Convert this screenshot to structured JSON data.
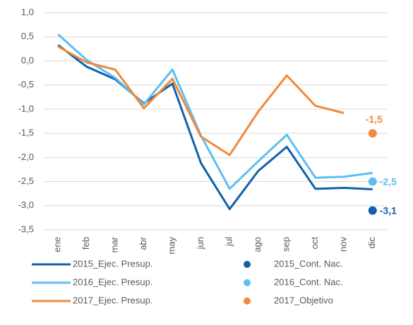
{
  "chart_data": {
    "type": "line",
    "categories": [
      "ene",
      "feb",
      "mar",
      "abr",
      "may",
      "jun",
      "jul",
      "ago",
      "sep",
      "oct",
      "nov",
      "dic"
    ],
    "ylim": [
      -3.5,
      1.0
    ],
    "yticks": [
      {
        "value": 1.0,
        "label": "1,0"
      },
      {
        "value": 0.5,
        "label": "0,5"
      },
      {
        "value": 0.0,
        "label": "0,0"
      },
      {
        "value": -0.5,
        "label": "-0,5"
      },
      {
        "value": -1.0,
        "label": "-1,0"
      },
      {
        "value": -1.5,
        "label": "-1,5"
      },
      {
        "value": -2.0,
        "label": "-2,0"
      },
      {
        "value": -2.5,
        "label": "-2,5"
      },
      {
        "value": -3.0,
        "label": "-3,0"
      },
      {
        "value": -3.5,
        "label": "-3,5"
      }
    ],
    "grid": true,
    "series": [
      {
        "name": "2015_Ejec. Presup.",
        "color": "#1160ab",
        "style": "line",
        "values": [
          0.33,
          -0.12,
          -0.38,
          -0.88,
          -0.47,
          -2.12,
          -3.07,
          -2.28,
          -1.78,
          -2.65,
          -2.63,
          -2.66
        ]
      },
      {
        "name": "2015_Cont. Nac.",
        "color": "#1160ab",
        "style": "marker",
        "values": [
          null,
          null,
          null,
          null,
          null,
          null,
          null,
          null,
          null,
          null,
          null,
          -3.1
        ],
        "value_labels": [
          null,
          null,
          null,
          null,
          null,
          null,
          null,
          null,
          null,
          null,
          null,
          "-3,1"
        ]
      },
      {
        "name": "2016_Ejec. Presup.",
        "color": "#5cbff3",
        "style": "line",
        "values": [
          0.55,
          0.02,
          -0.35,
          -0.9,
          -0.18,
          -1.55,
          -2.65,
          -2.08,
          -1.53,
          -2.42,
          -2.4,
          -2.32
        ]
      },
      {
        "name": "2016_Cont. Nac.",
        "color": "#5cbff3",
        "style": "marker",
        "values": [
          null,
          null,
          null,
          null,
          null,
          null,
          null,
          null,
          null,
          null,
          null,
          -2.5
        ],
        "value_labels": [
          null,
          null,
          null,
          null,
          null,
          null,
          null,
          null,
          null,
          null,
          null,
          "-2,5"
        ]
      },
      {
        "name": "2017_Ejec. Presup.",
        "color": "#f08a3c",
        "style": "line",
        "values": [
          0.3,
          -0.03,
          -0.18,
          -0.98,
          -0.37,
          -1.57,
          -1.95,
          -1.05,
          -0.3,
          -0.93,
          -1.08,
          null
        ]
      },
      {
        "name": "2017_Objetivo",
        "color": "#f08a3c",
        "style": "marker",
        "values": [
          null,
          null,
          null,
          null,
          null,
          null,
          null,
          null,
          null,
          null,
          null,
          -1.5
        ],
        "value_labels": [
          null,
          null,
          null,
          null,
          null,
          null,
          null,
          null,
          null,
          null,
          null,
          "-1,5"
        ]
      }
    ]
  }
}
